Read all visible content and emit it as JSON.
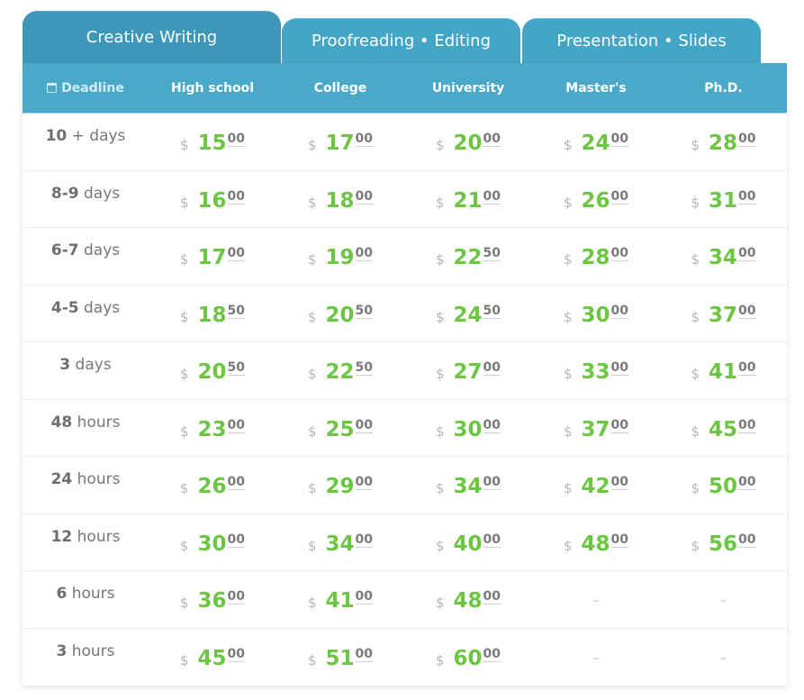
{
  "tabs": [
    {
      "label": "Creative Writing",
      "active": true
    },
    {
      "label": "Proofreading • Editing",
      "active": false
    },
    {
      "label": "Presentation • Slides",
      "active": false
    }
  ],
  "header": {
    "deadline": "Deadline",
    "levels": [
      "High school",
      "College",
      "University",
      "Master's",
      "Ph.D."
    ]
  },
  "currency": "$",
  "colors": {
    "tab": "#44a6c6",
    "header": "#4aa9c9",
    "price": "#6cc644"
  },
  "rows": [
    {
      "num": "10",
      "unit": "+ days",
      "prices": [
        [
          "15",
          "00"
        ],
        [
          "17",
          "00"
        ],
        [
          "20",
          "00"
        ],
        [
          "24",
          "00"
        ],
        [
          "28",
          "00"
        ]
      ]
    },
    {
      "num": "8-9",
      "unit": "days",
      "prices": [
        [
          "16",
          "00"
        ],
        [
          "18",
          "00"
        ],
        [
          "21",
          "00"
        ],
        [
          "26",
          "00"
        ],
        [
          "31",
          "00"
        ]
      ]
    },
    {
      "num": "6-7",
      "unit": "days",
      "prices": [
        [
          "17",
          "00"
        ],
        [
          "19",
          "00"
        ],
        [
          "22",
          "50"
        ],
        [
          "28",
          "00"
        ],
        [
          "34",
          "00"
        ]
      ]
    },
    {
      "num": "4-5",
      "unit": "days",
      "prices": [
        [
          "18",
          "50"
        ],
        [
          "20",
          "50"
        ],
        [
          "24",
          "50"
        ],
        [
          "30",
          "00"
        ],
        [
          "37",
          "00"
        ]
      ]
    },
    {
      "num": "3",
      "unit": "days",
      "prices": [
        [
          "20",
          "50"
        ],
        [
          "22",
          "50"
        ],
        [
          "27",
          "00"
        ],
        [
          "33",
          "00"
        ],
        [
          "41",
          "00"
        ]
      ]
    },
    {
      "num": "48",
      "unit": "hours",
      "prices": [
        [
          "23",
          "00"
        ],
        [
          "25",
          "00"
        ],
        [
          "30",
          "00"
        ],
        [
          "37",
          "00"
        ],
        [
          "45",
          "00"
        ]
      ]
    },
    {
      "num": "24",
      "unit": "hours",
      "prices": [
        [
          "26",
          "00"
        ],
        [
          "29",
          "00"
        ],
        [
          "34",
          "00"
        ],
        [
          "42",
          "00"
        ],
        [
          "50",
          "00"
        ]
      ]
    },
    {
      "num": "12",
      "unit": "hours",
      "prices": [
        [
          "30",
          "00"
        ],
        [
          "34",
          "00"
        ],
        [
          "40",
          "00"
        ],
        [
          "48",
          "00"
        ],
        [
          "56",
          "00"
        ]
      ]
    },
    {
      "num": "6",
      "unit": "hours",
      "prices": [
        [
          "36",
          "00"
        ],
        [
          "41",
          "00"
        ],
        [
          "48",
          "00"
        ],
        null,
        null
      ]
    },
    {
      "num": "3",
      "unit": "hours",
      "prices": [
        [
          "45",
          "00"
        ],
        [
          "51",
          "00"
        ],
        [
          "60",
          "00"
        ],
        null,
        null
      ]
    }
  ],
  "na_symbol": "–"
}
